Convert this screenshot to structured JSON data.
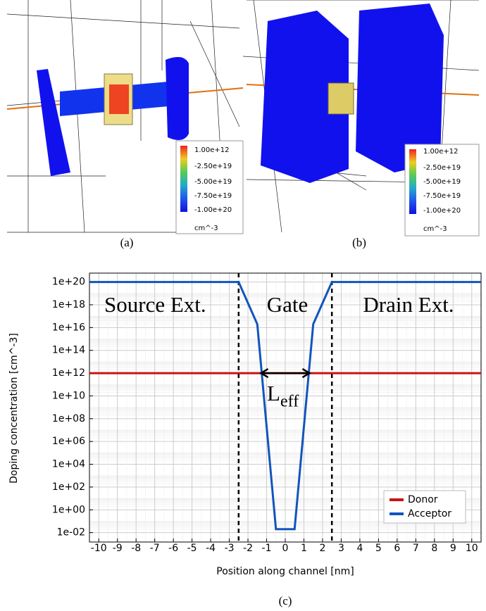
{
  "panels": [
    {
      "label": "(a)",
      "colorbar": {
        "ticks": [
          "1.00e+12",
          "-2.50e+19",
          "-5.00e+19",
          "-7.50e+19",
          "-1.00e+20"
        ],
        "unit": "cm^-3"
      }
    },
    {
      "label": "(b)",
      "colorbar": {
        "ticks": [
          "1.00e+12",
          "-2.50e+19",
          "-5.00e+19",
          "-7.50e+19",
          "-1.00e+20"
        ],
        "unit": "cm^-3"
      }
    }
  ],
  "chart_data": {
    "type": "line",
    "caption": "(c)",
    "x_label": "Position along channel [nm]",
    "y_label": "Doping concentration [cm^-3]",
    "xlim": [
      -10.5,
      10.5
    ],
    "xticks": [
      -10,
      -9,
      -8,
      -7,
      -6,
      -5,
      -4,
      -3,
      -2,
      -1,
      0,
      1,
      2,
      3,
      4,
      5,
      6,
      7,
      8,
      9,
      10
    ],
    "ylim": [
      0.0015,
      6e+20
    ],
    "log_y": true,
    "grid": true,
    "legend": "lower right",
    "yticks": [
      {
        "value": 1e+20,
        "label": "1e+20"
      },
      {
        "value": 1e+18,
        "label": "1e+18"
      },
      {
        "value": 1e+16,
        "label": "1e+16"
      },
      {
        "value": 100000000000000.0,
        "label": "1e+14"
      },
      {
        "value": 1000000000000.0,
        "label": "1e+12"
      },
      {
        "value": 10000000000.0,
        "label": "1e+10"
      },
      {
        "value": 100000000.0,
        "label": "1e+08"
      },
      {
        "value": 1000000.0,
        "label": "1e+06"
      },
      {
        "value": 10000.0,
        "label": "1e+04"
      },
      {
        "value": 100,
        "label": "1e+02"
      },
      {
        "value": 1,
        "label": "1e+00"
      },
      {
        "value": 0.01,
        "label": "1e-02"
      }
    ],
    "series": [
      {
        "name": "Donor",
        "color": "#cc1111",
        "x": [
          -10.5,
          10.5
        ],
        "values": [
          1000000000000.0,
          1000000000000.0
        ]
      },
      {
        "name": "Acceptor",
        "color": "#1155bb",
        "x": [
          -10.5,
          -2.5,
          -1.5,
          -0.5,
          0.5,
          1.5,
          2.5,
          10.5
        ],
        "values": [
          1e+20,
          1e+20,
          2e+16,
          0.02,
          0.02,
          2e+16,
          1e+20,
          1e+20
        ]
      }
    ],
    "vlines": [
      -2.5,
      2.5
    ],
    "annotations": [
      "Source Ext.",
      "Gate",
      "Drain Ext."
    ],
    "arrow": {
      "x": [
        -1.3,
        1.3
      ],
      "y": 1000000000000.0,
      "label": "L",
      "subscript": "eff"
    }
  }
}
